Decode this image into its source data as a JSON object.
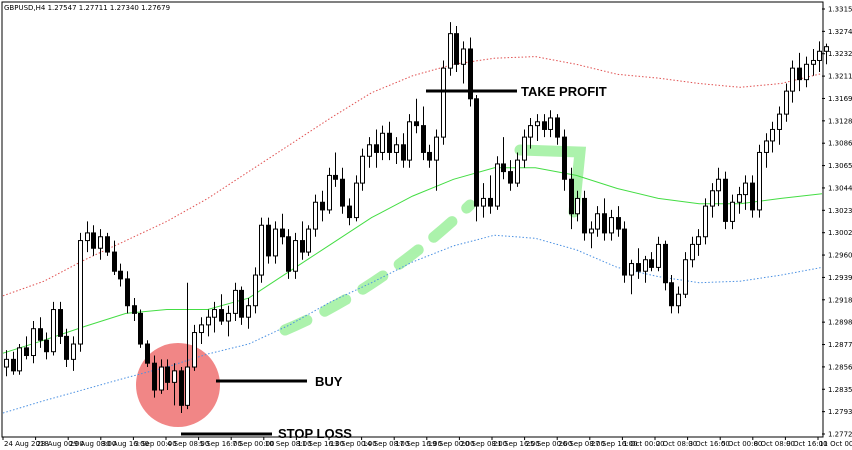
{
  "header": {
    "symbol_info": "GBPUSD,H4  1.27547 1.27711 1.27340 1.27679"
  },
  "annotations": {
    "take_profit": "TAKE PROFIT",
    "buy": "BUY",
    "stop_loss": "STOP LOSS"
  },
  "colors": {
    "upper_band": "#e05050",
    "middle_band": "#44dd44",
    "lower_band": "#4a90e2",
    "buy_circle": "#f08080",
    "trend_arrow": "#90ee90"
  },
  "chart_data": {
    "type": "candlestick",
    "title": "",
    "xlabel": "",
    "ylabel": "",
    "ylim": [
      1.276,
      1.3325
    ],
    "y_ticks": [
      "1.33155",
      "1.32740",
      "1.32320",
      "1.32110",
      "1.31695",
      "1.31280",
      "1.30865",
      "1.30650",
      "1.30445",
      "1.30230",
      "1.30025",
      "1.29605",
      "1.29395",
      "1.29185",
      "1.28980",
      "1.28770",
      "1.28560",
      "1.28350",
      "1.27935",
      "1.27720"
    ],
    "x_ticks": [
      "24 Aug 2018",
      "28 Aug 00:00",
      "29 Aug 08:00",
      "30 Aug 16:00",
      "3 Sep 00:00",
      "4 Sep 08:00",
      "5 Sep 16:00",
      "7 Sep 00:00",
      "10 Sep 08:00",
      "11 Sep 16:00",
      "13 Sep 00:00",
      "14 Sep 08:00",
      "17 Sep 16:00",
      "19 Sep 00:00",
      "20 Sep 08:00",
      "21 Sep 16:00",
      "25 Sep 00:00",
      "26 Sep 08:00",
      "27 Sep 16:00",
      "1 Oct 00:00",
      "2 Oct 08:00",
      "3 Oct 16:00",
      "5 Oct 00:00",
      "8 Oct 08:00",
      "9 Oct 16:00",
      "11 Oct 00:00"
    ],
    "candles": [
      {
        "o": 1.285,
        "h": 1.2872,
        "l": 1.2838,
        "c": 1.286
      },
      {
        "o": 1.286,
        "h": 1.287,
        "l": 1.284,
        "c": 1.2845
      },
      {
        "o": 1.2845,
        "h": 1.288,
        "l": 1.284,
        "c": 1.2875
      },
      {
        "o": 1.2875,
        "h": 1.289,
        "l": 1.286,
        "c": 1.2865
      },
      {
        "o": 1.2865,
        "h": 1.291,
        "l": 1.2855,
        "c": 1.29
      },
      {
        "o": 1.29,
        "h": 1.2915,
        "l": 1.2875,
        "c": 1.2885
      },
      {
        "o": 1.2885,
        "h": 1.2895,
        "l": 1.286,
        "c": 1.287
      },
      {
        "o": 1.287,
        "h": 1.2935,
        "l": 1.2865,
        "c": 1.2925
      },
      {
        "o": 1.2925,
        "h": 1.2935,
        "l": 1.288,
        "c": 1.289
      },
      {
        "o": 1.289,
        "h": 1.29,
        "l": 1.285,
        "c": 1.286
      },
      {
        "o": 1.286,
        "h": 1.289,
        "l": 1.2845,
        "c": 1.288
      },
      {
        "o": 1.288,
        "h": 1.3025,
        "l": 1.287,
        "c": 1.3015
      },
      {
        "o": 1.3015,
        "h": 1.304,
        "l": 1.3,
        "c": 1.3025
      },
      {
        "o": 1.3025,
        "h": 1.3035,
        "l": 1.2995,
        "c": 1.3005
      },
      {
        "o": 1.3005,
        "h": 1.303,
        "l": 1.299,
        "c": 1.302
      },
      {
        "o": 1.302,
        "h": 1.3025,
        "l": 1.2995,
        "c": 1.3
      },
      {
        "o": 1.3,
        "h": 1.3015,
        "l": 1.297,
        "c": 1.2975
      },
      {
        "o": 1.2975,
        "h": 1.2985,
        "l": 1.2955,
        "c": 1.2965
      },
      {
        "o": 1.2965,
        "h": 1.2975,
        "l": 1.292,
        "c": 1.293
      },
      {
        "o": 1.293,
        "h": 1.294,
        "l": 1.291,
        "c": 1.292
      },
      {
        "o": 1.292,
        "h": 1.2925,
        "l": 1.2875,
        "c": 1.288
      },
      {
        "o": 1.288,
        "h": 1.2885,
        "l": 1.285,
        "c": 1.2855
      },
      {
        "o": 1.2855,
        "h": 1.2865,
        "l": 1.281,
        "c": 1.282
      },
      {
        "o": 1.282,
        "h": 1.286,
        "l": 1.2815,
        "c": 1.285
      },
      {
        "o": 1.285,
        "h": 1.286,
        "l": 1.282,
        "c": 1.283
      },
      {
        "o": 1.283,
        "h": 1.2855,
        "l": 1.28,
        "c": 1.2845
      },
      {
        "o": 1.2845,
        "h": 1.285,
        "l": 1.279,
        "c": 1.28
      },
      {
        "o": 1.28,
        "h": 1.296,
        "l": 1.2795,
        "c": 1.285
      },
      {
        "o": 1.285,
        "h": 1.2905,
        "l": 1.2845,
        "c": 1.2895
      },
      {
        "o": 1.2895,
        "h": 1.2915,
        "l": 1.288,
        "c": 1.2905
      },
      {
        "o": 1.2905,
        "h": 1.2925,
        "l": 1.289,
        "c": 1.2915
      },
      {
        "o": 1.2915,
        "h": 1.2935,
        "l": 1.2895,
        "c": 1.2925
      },
      {
        "o": 1.2925,
        "h": 1.2945,
        "l": 1.2905,
        "c": 1.291
      },
      {
        "o": 1.291,
        "h": 1.293,
        "l": 1.289,
        "c": 1.292
      },
      {
        "o": 1.292,
        "h": 1.296,
        "l": 1.291,
        "c": 1.295
      },
      {
        "o": 1.295,
        "h": 1.2955,
        "l": 1.2905,
        "c": 1.2915
      },
      {
        "o": 1.2915,
        "h": 1.294,
        "l": 1.29,
        "c": 1.293
      },
      {
        "o": 1.293,
        "h": 1.298,
        "l": 1.292,
        "c": 1.297
      },
      {
        "o": 1.297,
        "h": 1.3045,
        "l": 1.296,
        "c": 1.3035
      },
      {
        "o": 1.3035,
        "h": 1.3045,
        "l": 1.2985,
        "c": 1.2995
      },
      {
        "o": 1.2995,
        "h": 1.304,
        "l": 1.2985,
        "c": 1.303
      },
      {
        "o": 1.303,
        "h": 1.305,
        "l": 1.301,
        "c": 1.302
      },
      {
        "o": 1.302,
        "h": 1.303,
        "l": 1.2965,
        "c": 1.2975
      },
      {
        "o": 1.2975,
        "h": 1.3025,
        "l": 1.2965,
        "c": 1.3015
      },
      {
        "o": 1.3015,
        "h": 1.304,
        "l": 1.299,
        "c": 1.3
      },
      {
        "o": 1.3,
        "h": 1.3035,
        "l": 1.2995,
        "c": 1.303
      },
      {
        "o": 1.303,
        "h": 1.3075,
        "l": 1.302,
        "c": 1.3065
      },
      {
        "o": 1.3065,
        "h": 1.308,
        "l": 1.304,
        "c": 1.3055
      },
      {
        "o": 1.3055,
        "h": 1.311,
        "l": 1.305,
        "c": 1.31
      },
      {
        "o": 1.31,
        "h": 1.313,
        "l": 1.3085,
        "c": 1.3095
      },
      {
        "o": 1.3095,
        "h": 1.311,
        "l": 1.305,
        "c": 1.306
      },
      {
        "o": 1.306,
        "h": 1.307,
        "l": 1.3035,
        "c": 1.3045
      },
      {
        "o": 1.3045,
        "h": 1.31,
        "l": 1.304,
        "c": 1.309
      },
      {
        "o": 1.309,
        "h": 1.3135,
        "l": 1.308,
        "c": 1.3125
      },
      {
        "o": 1.3125,
        "h": 1.315,
        "l": 1.311,
        "c": 1.314
      },
      {
        "o": 1.314,
        "h": 1.316,
        "l": 1.311,
        "c": 1.313
      },
      {
        "o": 1.313,
        "h": 1.3165,
        "l": 1.312,
        "c": 1.3155
      },
      {
        "o": 1.3155,
        "h": 1.317,
        "l": 1.312,
        "c": 1.313
      },
      {
        "o": 1.313,
        "h": 1.315,
        "l": 1.3115,
        "c": 1.314
      },
      {
        "o": 1.314,
        "h": 1.3155,
        "l": 1.311,
        "c": 1.312
      },
      {
        "o": 1.312,
        "h": 1.318,
        "l": 1.311,
        "c": 1.317
      },
      {
        "o": 1.317,
        "h": 1.32,
        "l": 1.3155,
        "c": 1.3165
      },
      {
        "o": 1.3165,
        "h": 1.319,
        "l": 1.312,
        "c": 1.313
      },
      {
        "o": 1.313,
        "h": 1.314,
        "l": 1.311,
        "c": 1.312
      },
      {
        "o": 1.312,
        "h": 1.316,
        "l": 1.308,
        "c": 1.315
      },
      {
        "o": 1.315,
        "h": 1.325,
        "l": 1.314,
        "c": 1.324
      },
      {
        "o": 1.324,
        "h": 1.33,
        "l": 1.323,
        "c": 1.3285
      },
      {
        "o": 1.3285,
        "h": 1.3295,
        "l": 1.3235,
        "c": 1.3245
      },
      {
        "o": 1.3245,
        "h": 1.3275,
        "l": 1.322,
        "c": 1.3265
      },
      {
        "o": 1.3265,
        "h": 1.328,
        "l": 1.319,
        "c": 1.32
      },
      {
        "o": 1.32,
        "h": 1.3205,
        "l": 1.304,
        "c": 1.306
      },
      {
        "o": 1.306,
        "h": 1.309,
        "l": 1.3045,
        "c": 1.307
      },
      {
        "o": 1.307,
        "h": 1.31,
        "l": 1.305,
        "c": 1.306
      },
      {
        "o": 1.306,
        "h": 1.3125,
        "l": 1.3055,
        "c": 1.3115
      },
      {
        "o": 1.3115,
        "h": 1.315,
        "l": 1.3095,
        "c": 1.3105
      },
      {
        "o": 1.3105,
        "h": 1.312,
        "l": 1.308,
        "c": 1.309
      },
      {
        "o": 1.309,
        "h": 1.313,
        "l": 1.3085,
        "c": 1.312
      },
      {
        "o": 1.312,
        "h": 1.316,
        "l": 1.311,
        "c": 1.315
      },
      {
        "o": 1.315,
        "h": 1.3175,
        "l": 1.3135,
        "c": 1.3165
      },
      {
        "o": 1.3165,
        "h": 1.318,
        "l": 1.3145,
        "c": 1.317
      },
      {
        "o": 1.317,
        "h": 1.318,
        "l": 1.315,
        "c": 1.316
      },
      {
        "o": 1.316,
        "h": 1.3185,
        "l": 1.315,
        "c": 1.3175
      },
      {
        "o": 1.3175,
        "h": 1.318,
        "l": 1.314,
        "c": 1.315
      },
      {
        "o": 1.315,
        "h": 1.316,
        "l": 1.308,
        "c": 1.3095
      },
      {
        "o": 1.3095,
        "h": 1.311,
        "l": 1.303,
        "c": 1.305
      },
      {
        "o": 1.305,
        "h": 1.308,
        "l": 1.304,
        "c": 1.307
      },
      {
        "o": 1.307,
        "h": 1.308,
        "l": 1.3015,
        "c": 1.3025
      },
      {
        "o": 1.3025,
        "h": 1.304,
        "l": 1.3005,
        "c": 1.303
      },
      {
        "o": 1.303,
        "h": 1.306,
        "l": 1.302,
        "c": 1.305
      },
      {
        "o": 1.305,
        "h": 1.307,
        "l": 1.3015,
        "c": 1.3025
      },
      {
        "o": 1.3025,
        "h": 1.3055,
        "l": 1.3015,
        "c": 1.3045
      },
      {
        "o": 1.3045,
        "h": 1.306,
        "l": 1.302,
        "c": 1.303
      },
      {
        "o": 1.303,
        "h": 1.304,
        "l": 1.296,
        "c": 1.297
      },
      {
        "o": 1.297,
        "h": 1.299,
        "l": 1.2945,
        "c": 1.2985
      },
      {
        "o": 1.2985,
        "h": 1.3005,
        "l": 1.2965,
        "c": 1.2975
      },
      {
        "o": 1.2975,
        "h": 1.2995,
        "l": 1.296,
        "c": 1.299
      },
      {
        "o": 1.299,
        "h": 1.3,
        "l": 1.2975,
        "c": 1.298
      },
      {
        "o": 1.298,
        "h": 1.302,
        "l": 1.2975,
        "c": 1.301
      },
      {
        "o": 1.301,
        "h": 1.3015,
        "l": 1.295,
        "c": 1.296
      },
      {
        "o": 1.296,
        "h": 1.297,
        "l": 1.292,
        "c": 1.293
      },
      {
        "o": 1.293,
        "h": 1.2955,
        "l": 1.292,
        "c": 1.2945
      },
      {
        "o": 1.2945,
        "h": 1.3,
        "l": 1.294,
        "c": 1.299
      },
      {
        "o": 1.299,
        "h": 1.302,
        "l": 1.298,
        "c": 1.301
      },
      {
        "o": 1.301,
        "h": 1.303,
        "l": 1.2995,
        "c": 1.302
      },
      {
        "o": 1.302,
        "h": 1.307,
        "l": 1.301,
        "c": 1.306
      },
      {
        "o": 1.306,
        "h": 1.309,
        "l": 1.3045,
        "c": 1.308
      },
      {
        "o": 1.308,
        "h": 1.311,
        "l": 1.306,
        "c": 1.3095
      },
      {
        "o": 1.3095,
        "h": 1.3105,
        "l": 1.303,
        "c": 1.304
      },
      {
        "o": 1.304,
        "h": 1.3075,
        "l": 1.303,
        "c": 1.3065
      },
      {
        "o": 1.3065,
        "h": 1.3085,
        "l": 1.305,
        "c": 1.3075
      },
      {
        "o": 1.3075,
        "h": 1.31,
        "l": 1.3055,
        "c": 1.309
      },
      {
        "o": 1.309,
        "h": 1.31,
        "l": 1.3045,
        "c": 1.3055
      },
      {
        "o": 1.3055,
        "h": 1.314,
        "l": 1.3045,
        "c": 1.313
      },
      {
        "o": 1.313,
        "h": 1.3155,
        "l": 1.311,
        "c": 1.3145
      },
      {
        "o": 1.3145,
        "h": 1.317,
        "l": 1.313,
        "c": 1.316
      },
      {
        "o": 1.316,
        "h": 1.319,
        "l": 1.314,
        "c": 1.318
      },
      {
        "o": 1.318,
        "h": 1.322,
        "l": 1.317,
        "c": 1.321
      },
      {
        "o": 1.321,
        "h": 1.325,
        "l": 1.3195,
        "c": 1.324
      },
      {
        "o": 1.324,
        "h": 1.326,
        "l": 1.321,
        "c": 1.3225
      },
      {
        "o": 1.3225,
        "h": 1.3255,
        "l": 1.3215,
        "c": 1.3245
      },
      {
        "o": 1.3245,
        "h": 1.3265,
        "l": 1.323,
        "c": 1.325
      },
      {
        "o": 1.325,
        "h": 1.3275,
        "l": 1.3235,
        "c": 1.3262
      },
      {
        "o": 1.3262,
        "h": 1.3272,
        "l": 1.3245,
        "c": 1.3268
      }
    ],
    "upper_band": [
      1.2943,
      1.2962,
      1.299,
      1.3015,
      1.304,
      1.307,
      1.3105,
      1.314,
      1.3175,
      1.3208,
      1.323,
      1.3245,
      1.3253,
      1.3255,
      1.3245,
      1.3232,
      1.3227,
      1.322,
      1.3215,
      1.322,
      1.3233
    ],
    "middle_band": [
      1.2868,
      1.2885,
      1.2903,
      1.292,
      1.2925,
      1.2925,
      1.294,
      1.2975,
      1.301,
      1.3045,
      1.3073,
      1.3095,
      1.311,
      1.311,
      1.31,
      1.3083,
      1.307,
      1.3063,
      1.3063,
      1.307,
      1.3076
    ],
    "lower_band": [
      1.279,
      1.2806,
      1.2821,
      1.2836,
      1.285,
      1.2867,
      1.288,
      1.2905,
      1.2935,
      1.296,
      1.2987,
      1.3008,
      1.3022,
      1.3018,
      1.3003,
      1.298,
      1.2968,
      1.296,
      1.2962,
      1.297,
      1.298
    ]
  }
}
